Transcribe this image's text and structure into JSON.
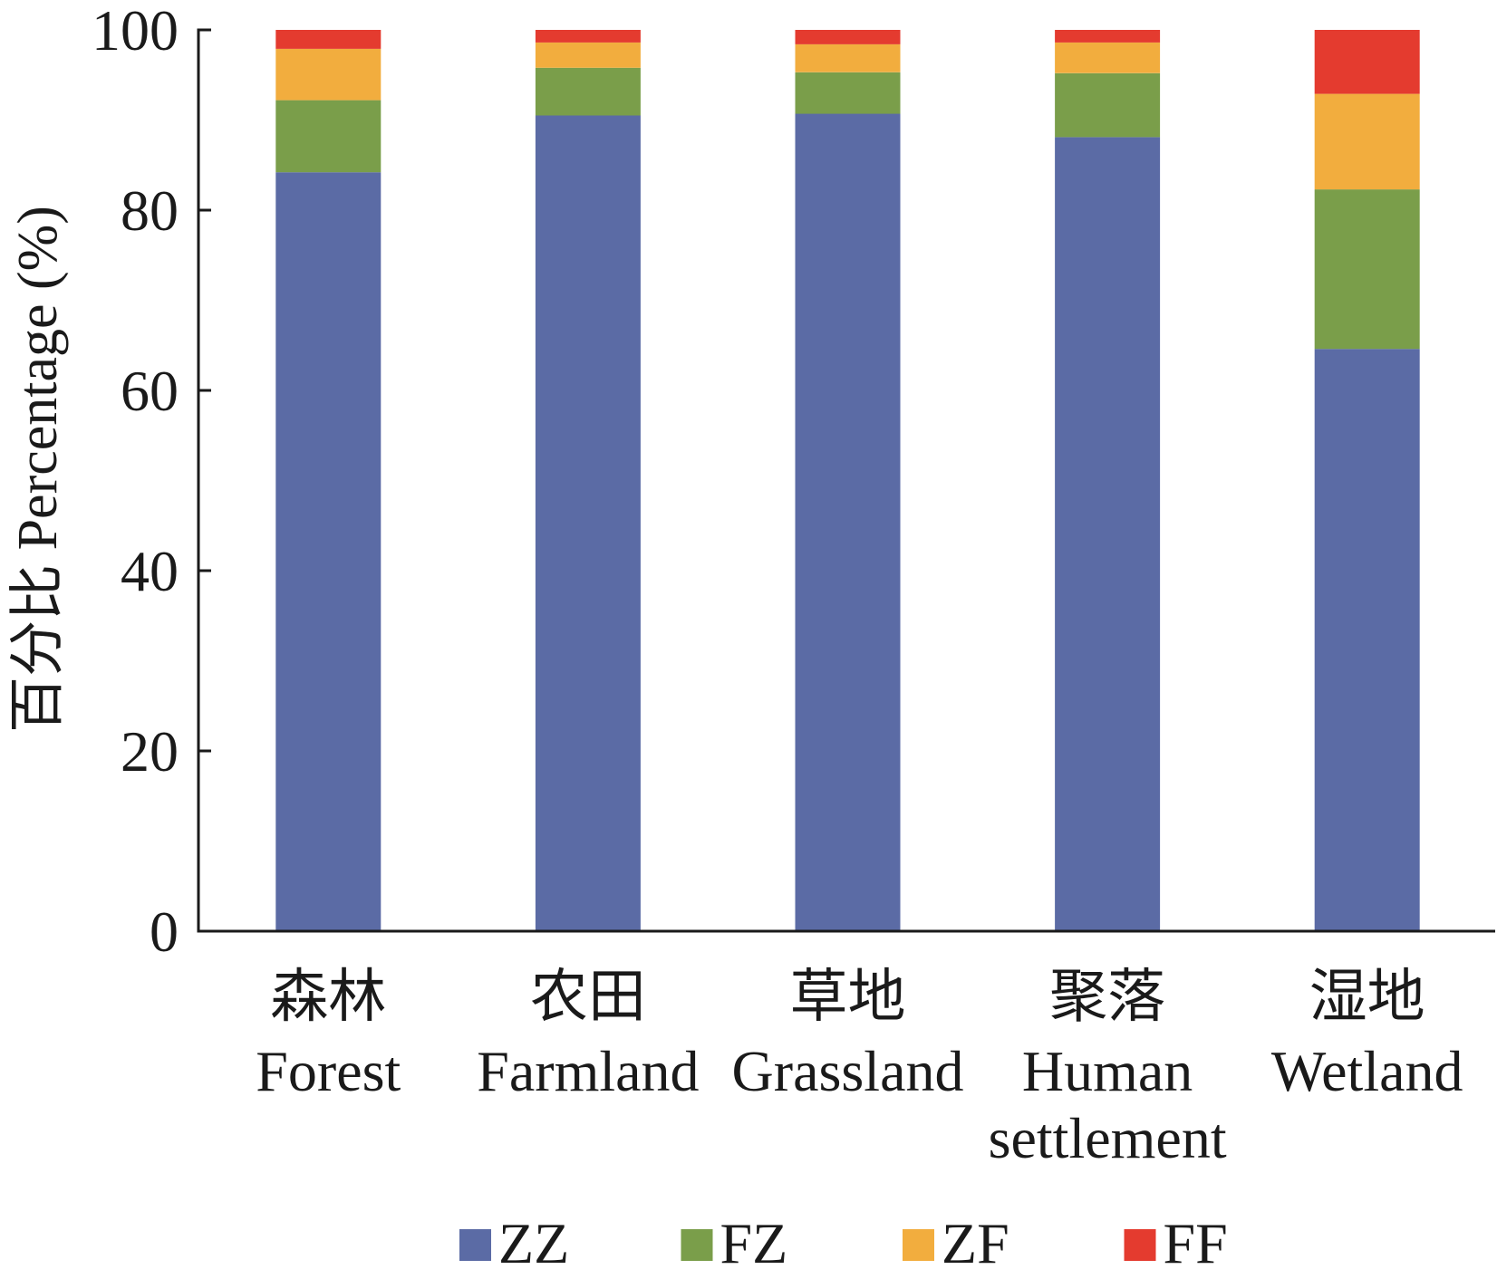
{
  "chart_data": {
    "type": "bar",
    "stacked": true,
    "categories": [
      {
        "zh": "森林",
        "en": [
          "Forest"
        ]
      },
      {
        "zh": "农田",
        "en": [
          "Farmland"
        ]
      },
      {
        "zh": "草地",
        "en": [
          "Grassland"
        ]
      },
      {
        "zh": "聚落",
        "en": [
          "Human",
          "settlement"
        ]
      },
      {
        "zh": "湿地",
        "en": [
          "Wetland"
        ]
      }
    ],
    "series": [
      {
        "name": "ZZ",
        "color": "#5B6BA5",
        "values": [
          84.2,
          90.5,
          90.7,
          88.1,
          64.6
        ]
      },
      {
        "name": "FZ",
        "color": "#7A9E4A",
        "values": [
          8.0,
          5.3,
          4.6,
          7.1,
          17.7
        ]
      },
      {
        "name": "ZF",
        "color": "#F2AD3E",
        "values": [
          5.7,
          2.8,
          3.1,
          3.4,
          10.6
        ]
      },
      {
        "name": "FF",
        "color": "#E43B2F",
        "values": [
          2.1,
          1.4,
          1.6,
          1.4,
          7.1
        ]
      }
    ],
    "ylabel": "百分比 Percentage (%)",
    "ylim": [
      0,
      100
    ],
    "yticks": [
      0,
      20,
      40,
      60,
      80,
      100
    ],
    "grid": false,
    "legend": "bottom"
  }
}
